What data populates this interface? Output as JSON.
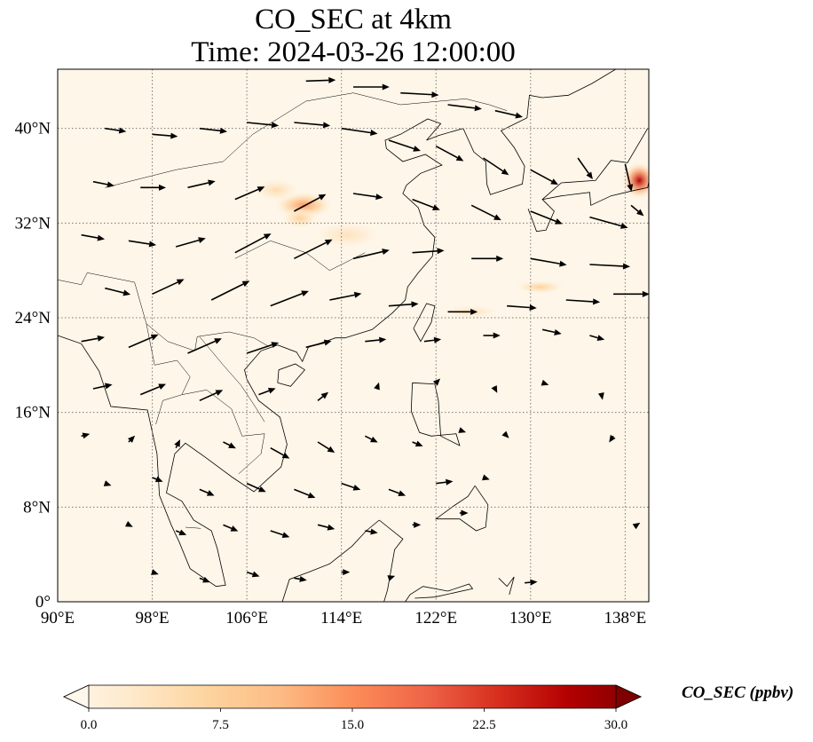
{
  "title": {
    "line1": "CO_SEC at 4km",
    "line2": "Time: 2024-03-26 12:00:00"
  },
  "map": {
    "projection": "PlateCarree",
    "extent": {
      "lon": [
        90,
        140
      ],
      "lat": [
        0,
        45
      ]
    },
    "x_ticks": [
      {
        "value": 90,
        "label": "90°E"
      },
      {
        "value": 98,
        "label": "98°E"
      },
      {
        "value": 106,
        "label": "106°E"
      },
      {
        "value": 114,
        "label": "114°E"
      },
      {
        "value": 122,
        "label": "122°E"
      },
      {
        "value": 130,
        "label": "130°E"
      },
      {
        "value": 138,
        "label": "138°E"
      }
    ],
    "y_ticks": [
      {
        "value": 0,
        "label": "0°"
      },
      {
        "value": 8,
        "label": "8°N"
      },
      {
        "value": 16,
        "label": "16°N"
      },
      {
        "value": 24,
        "label": "24°N"
      },
      {
        "value": 32,
        "label": "32°N"
      },
      {
        "value": 40,
        "label": "40°N"
      }
    ],
    "gridlines": "dotted",
    "colormap": "OrRd",
    "colors": {
      "background": "#fef6e8",
      "grid": "#7a7a7a",
      "coast": "#000000",
      "arrow": "#000000"
    }
  },
  "colorbar": {
    "label": "CO_SEC (ppbv)",
    "min": 0,
    "max": 30,
    "extend": "both",
    "ticks": [
      "0.0",
      "7.5",
      "15.0",
      "22.5",
      "30.0"
    ],
    "tick_values": [
      0,
      7.5,
      15,
      22.5,
      30
    ],
    "gradient": [
      "#fff7ec",
      "#fee8c8",
      "#fdd49e",
      "#fdbb84",
      "#fc8d59",
      "#ef6548",
      "#d7301f",
      "#b30000",
      "#7f0000"
    ]
  },
  "chart_data": {
    "type": "heatmap",
    "variable": "CO_SEC",
    "level": "4km",
    "units": "ppbv",
    "plumes": [
      {
        "lon": 110.8,
        "lat": 33.5,
        "value": 14,
        "rx": 2.6,
        "ry": 1.2
      },
      {
        "lon": 108.5,
        "lat": 34.8,
        "value": 6,
        "rx": 2.0,
        "ry": 1.0
      },
      {
        "lon": 110.5,
        "lat": 32.4,
        "value": 8,
        "rx": 1.6,
        "ry": 0.9
      },
      {
        "lon": 139.2,
        "lat": 35.6,
        "value": 26,
        "rx": 1.5,
        "ry": 1.6
      },
      {
        "lon": 130.8,
        "lat": 26.6,
        "value": 8,
        "rx": 2.2,
        "ry": 0.6
      },
      {
        "lon": 125.0,
        "lat": 24.5,
        "value": 5,
        "rx": 2.5,
        "ry": 0.6
      },
      {
        "lon": 114.5,
        "lat": 31.0,
        "value": 5,
        "rx": 3.0,
        "ry": 1.2
      }
    ],
    "wind_vectors": [
      {
        "lon": 111.0,
        "lat": 44.0,
        "u": 2.8,
        "v": 0.1
      },
      {
        "lon": 115.0,
        "lat": 43.5,
        "u": 3.4,
        "v": 0.0
      },
      {
        "lon": 119.0,
        "lat": 43.0,
        "u": 3.6,
        "v": -0.2
      },
      {
        "lon": 123.0,
        "lat": 42.0,
        "u": 3.2,
        "v": -0.4
      },
      {
        "lon": 127.0,
        "lat": 41.5,
        "u": 2.6,
        "v": -0.6
      },
      {
        "lon": 94.0,
        "lat": 40.0,
        "u": 2.0,
        "v": -0.3
      },
      {
        "lon": 98.0,
        "lat": 39.5,
        "u": 2.4,
        "v": -0.2
      },
      {
        "lon": 102.0,
        "lat": 40.0,
        "u": 2.6,
        "v": -0.3
      },
      {
        "lon": 106.0,
        "lat": 40.5,
        "u": 3.0,
        "v": -0.3
      },
      {
        "lon": 110.0,
        "lat": 40.5,
        "u": 3.4,
        "v": -0.3
      },
      {
        "lon": 114.0,
        "lat": 40.0,
        "u": 3.4,
        "v": -0.5
      },
      {
        "lon": 118.0,
        "lat": 39.0,
        "u": 3.0,
        "v": -1.0
      },
      {
        "lon": 122.0,
        "lat": 38.5,
        "u": 2.6,
        "v": -1.4
      },
      {
        "lon": 126.0,
        "lat": 37.5,
        "u": 2.4,
        "v": -1.6
      },
      {
        "lon": 130.0,
        "lat": 36.5,
        "u": 2.6,
        "v": -1.4
      },
      {
        "lon": 134.0,
        "lat": 37.5,
        "u": 1.4,
        "v": -2.0
      },
      {
        "lon": 138.0,
        "lat": 37.0,
        "u": 0.6,
        "v": -2.6
      },
      {
        "lon": 93.0,
        "lat": 35.5,
        "u": 2.0,
        "v": -0.4
      },
      {
        "lon": 97.0,
        "lat": 35.0,
        "u": 2.4,
        "v": 0.0
      },
      {
        "lon": 101.0,
        "lat": 35.0,
        "u": 2.6,
        "v": 0.6
      },
      {
        "lon": 105.0,
        "lat": 34.0,
        "u": 2.8,
        "v": 1.2
      },
      {
        "lon": 110.0,
        "lat": 33.0,
        "u": 3.0,
        "v": 1.6
      },
      {
        "lon": 115.0,
        "lat": 34.5,
        "u": 2.8,
        "v": -0.4
      },
      {
        "lon": 120.0,
        "lat": 34.0,
        "u": 2.6,
        "v": -1.0
      },
      {
        "lon": 125.0,
        "lat": 33.5,
        "u": 2.8,
        "v": -1.4
      },
      {
        "lon": 130.0,
        "lat": 33.0,
        "u": 3.0,
        "v": -1.2
      },
      {
        "lon": 135.0,
        "lat": 32.5,
        "u": 3.6,
        "v": -1.0
      },
      {
        "lon": 138.5,
        "lat": 33.5,
        "u": 1.2,
        "v": -1.0
      },
      {
        "lon": 92.0,
        "lat": 31.0,
        "u": 2.2,
        "v": -0.4
      },
      {
        "lon": 96.0,
        "lat": 30.5,
        "u": 2.6,
        "v": -0.4
      },
      {
        "lon": 100.0,
        "lat": 30.0,
        "u": 2.8,
        "v": 0.8
      },
      {
        "lon": 105.0,
        "lat": 29.5,
        "u": 3.4,
        "v": 1.8
      },
      {
        "lon": 110.0,
        "lat": 29.0,
        "u": 3.6,
        "v": 1.8
      },
      {
        "lon": 115.0,
        "lat": 29.0,
        "u": 3.4,
        "v": 0.8
      },
      {
        "lon": 120.0,
        "lat": 29.5,
        "u": 3.0,
        "v": 0.2
      },
      {
        "lon": 125.0,
        "lat": 29.0,
        "u": 3.0,
        "v": 0.0
      },
      {
        "lon": 130.0,
        "lat": 29.0,
        "u": 3.4,
        "v": -0.6
      },
      {
        "lon": 135.0,
        "lat": 28.5,
        "u": 3.8,
        "v": -0.2
      },
      {
        "lon": 94.0,
        "lat": 26.5,
        "u": 2.4,
        "v": -0.6
      },
      {
        "lon": 98.0,
        "lat": 26.0,
        "u": 3.0,
        "v": 1.4
      },
      {
        "lon": 103.0,
        "lat": 25.5,
        "u": 3.6,
        "v": 1.8
      },
      {
        "lon": 108.0,
        "lat": 25.0,
        "u": 3.6,
        "v": 1.4
      },
      {
        "lon": 113.0,
        "lat": 25.5,
        "u": 3.0,
        "v": 0.6
      },
      {
        "lon": 118.0,
        "lat": 25.0,
        "u": 2.8,
        "v": 0.2
      },
      {
        "lon": 123.0,
        "lat": 24.5,
        "u": 2.8,
        "v": 0.0
      },
      {
        "lon": 128.0,
        "lat": 25.0,
        "u": 2.8,
        "v": -0.2
      },
      {
        "lon": 133.0,
        "lat": 25.5,
        "u": 3.2,
        "v": -0.2
      },
      {
        "lon": 137.0,
        "lat": 26.0,
        "u": 3.4,
        "v": 0.0
      },
      {
        "lon": 92.0,
        "lat": 22.0,
        "u": 2.2,
        "v": 0.4
      },
      {
        "lon": 96.0,
        "lat": 21.5,
        "u": 2.8,
        "v": 1.2
      },
      {
        "lon": 101.0,
        "lat": 21.0,
        "u": 3.2,
        "v": 1.4
      },
      {
        "lon": 106.0,
        "lat": 21.0,
        "u": 3.0,
        "v": 1.0
      },
      {
        "lon": 111.0,
        "lat": 21.5,
        "u": 2.4,
        "v": 0.6
      },
      {
        "lon": 116.0,
        "lat": 22.0,
        "u": 2.0,
        "v": 0.2
      },
      {
        "lon": 121.0,
        "lat": 22.0,
        "u": 1.6,
        "v": 0.2
      },
      {
        "lon": 126.0,
        "lat": 22.5,
        "u": 1.6,
        "v": 0.0
      },
      {
        "lon": 131.0,
        "lat": 23.0,
        "u": 1.8,
        "v": -0.4
      },
      {
        "lon": 135.0,
        "lat": 22.5,
        "u": 1.4,
        "v": -0.4
      },
      {
        "lon": 93.0,
        "lat": 18.0,
        "u": 1.8,
        "v": 0.4
      },
      {
        "lon": 97.0,
        "lat": 17.5,
        "u": 2.4,
        "v": 1.0
      },
      {
        "lon": 102.0,
        "lat": 17.0,
        "u": 2.2,
        "v": 1.0
      },
      {
        "lon": 107.0,
        "lat": 17.5,
        "u": 1.6,
        "v": 0.6
      },
      {
        "lon": 112.0,
        "lat": 17.0,
        "u": 1.0,
        "v": 0.8
      },
      {
        "lon": 117.0,
        "lat": 18.0,
        "u": 0.2,
        "v": 0.6
      },
      {
        "lon": 122.0,
        "lat": 18.5,
        "u": 0.4,
        "v": 0.4
      },
      {
        "lon": 127.0,
        "lat": 18.0,
        "u": 0.2,
        "v": -0.4
      },
      {
        "lon": 131.0,
        "lat": 18.5,
        "u": 0.6,
        "v": -0.2
      },
      {
        "lon": 136.0,
        "lat": 17.5,
        "u": 0.1,
        "v": -0.5
      },
      {
        "lon": 92.0,
        "lat": 14.0,
        "u": 0.8,
        "v": 0.2
      },
      {
        "lon": 96.0,
        "lat": 13.5,
        "u": 0.6,
        "v": 0.6
      },
      {
        "lon": 100.0,
        "lat": 13.0,
        "u": 0.4,
        "v": 0.8
      },
      {
        "lon": 104.0,
        "lat": 13.5,
        "u": 1.2,
        "v": -0.6
      },
      {
        "lon": 108.0,
        "lat": 13.0,
        "u": 1.8,
        "v": -1.0
      },
      {
        "lon": 112.0,
        "lat": 13.5,
        "u": 1.6,
        "v": -1.0
      },
      {
        "lon": 116.0,
        "lat": 14.0,
        "u": 1.2,
        "v": -0.6
      },
      {
        "lon": 120.0,
        "lat": 13.5,
        "u": 1.0,
        "v": -0.4
      },
      {
        "lon": 124.0,
        "lat": 14.5,
        "u": 0.6,
        "v": -0.2
      },
      {
        "lon": 128.0,
        "lat": 14.0,
        "u": 0.2,
        "v": -0.2
      },
      {
        "lon": 137.0,
        "lat": 14.0,
        "u": -0.4,
        "v": -0.6
      },
      {
        "lon": 94.0,
        "lat": 10.0,
        "u": 0.6,
        "v": -0.2
      },
      {
        "lon": 98.0,
        "lat": 10.5,
        "u": 1.0,
        "v": -0.4
      },
      {
        "lon": 102.0,
        "lat": 9.5,
        "u": 1.4,
        "v": -0.6
      },
      {
        "lon": 106.0,
        "lat": 10.0,
        "u": 1.8,
        "v": -0.8
      },
      {
        "lon": 110.0,
        "lat": 9.5,
        "u": 2.0,
        "v": -0.8
      },
      {
        "lon": 114.0,
        "lat": 10.0,
        "u": 1.8,
        "v": -0.6
      },
      {
        "lon": 118.0,
        "lat": 9.5,
        "u": 1.6,
        "v": -0.6
      },
      {
        "lon": 122.0,
        "lat": 10.0,
        "u": 1.6,
        "v": 0.2
      },
      {
        "lon": 126.0,
        "lat": 10.5,
        "u": 0.6,
        "v": -0.2
      },
      {
        "lon": 96.0,
        "lat": 6.5,
        "u": 0.4,
        "v": -0.2
      },
      {
        "lon": 100.0,
        "lat": 6.0,
        "u": 1.0,
        "v": -0.4
      },
      {
        "lon": 104.0,
        "lat": 6.5,
        "u": 1.4,
        "v": -0.6
      },
      {
        "lon": 108.0,
        "lat": 6.0,
        "u": 1.8,
        "v": -0.6
      },
      {
        "lon": 112.0,
        "lat": 6.5,
        "u": 1.6,
        "v": -0.4
      },
      {
        "lon": 116.0,
        "lat": 6.0,
        "u": 1.2,
        "v": -0.2
      },
      {
        "lon": 120.0,
        "lat": 6.5,
        "u": 0.8,
        "v": 0.0
      },
      {
        "lon": 124.0,
        "lat": 7.5,
        "u": 0.8,
        "v": 0.0
      },
      {
        "lon": 98.0,
        "lat": 2.5,
        "u": 0.6,
        "v": -0.2
      },
      {
        "lon": 102.0,
        "lat": 2.0,
        "u": 1.0,
        "v": -0.4
      },
      {
        "lon": 106.0,
        "lat": 2.5,
        "u": 1.2,
        "v": -0.4
      },
      {
        "lon": 110.0,
        "lat": 2.0,
        "u": 1.2,
        "v": -0.2
      },
      {
        "lon": 114.0,
        "lat": 2.5,
        "u": 0.8,
        "v": 0.0
      },
      {
        "lon": 118.0,
        "lat": 2.0,
        "u": 0.6,
        "v": 0.2
      },
      {
        "lon": 129.5,
        "lat": 1.6,
        "u": 1.2,
        "v": 0.1
      },
      {
        "lon": 139.0,
        "lat": 6.5,
        "u": 0.3,
        "v": 0.2
      }
    ]
  }
}
